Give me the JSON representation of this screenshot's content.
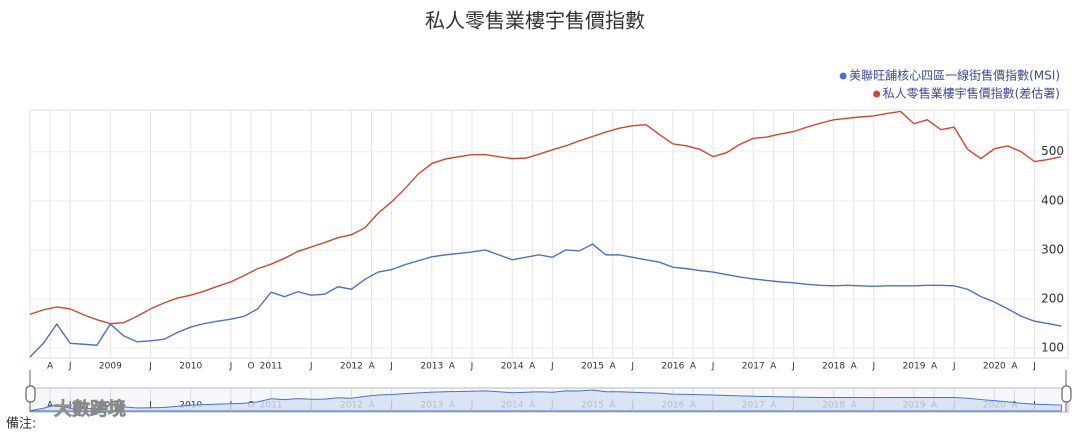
{
  "chart_data": {
    "type": "line",
    "title": "私人零售業樓宇售價指數",
    "x": [
      "2008-01",
      "2008-03",
      "2008-05",
      "2008-07",
      "2008-09",
      "2008-11",
      "2009-01",
      "2009-03",
      "2009-05",
      "2009-07",
      "2009-09",
      "2009-11",
      "2010-01",
      "2010-03",
      "2010-05",
      "2010-07",
      "2010-09",
      "2010-11",
      "2011-01",
      "2011-03",
      "2011-05",
      "2011-07",
      "2011-09",
      "2011-11",
      "2012-01",
      "2012-03",
      "2012-05",
      "2012-07",
      "2012-09",
      "2012-11",
      "2013-01",
      "2013-03",
      "2013-05",
      "2013-07",
      "2013-09",
      "2013-11",
      "2014-01",
      "2014-03",
      "2014-05",
      "2014-07",
      "2014-09",
      "2014-11",
      "2015-01",
      "2015-03",
      "2015-05",
      "2015-07",
      "2015-09",
      "2015-11",
      "2016-01",
      "2016-03",
      "2016-05",
      "2016-07",
      "2016-09",
      "2016-11",
      "2017-01",
      "2017-03",
      "2017-05",
      "2017-07",
      "2017-09",
      "2017-11",
      "2018-01",
      "2018-03",
      "2018-05",
      "2018-07",
      "2018-09",
      "2018-11",
      "2019-01",
      "2019-03",
      "2019-05",
      "2019-07",
      "2019-09",
      "2019-11",
      "2020-01",
      "2020-03",
      "2020-05",
      "2020-07",
      "2020-09",
      "2020-11"
    ],
    "series": [
      {
        "name": "美聯旺舖核心四區一線街售價指數(MSI)",
        "color": "#4a72c4",
        "values": [
          82,
          110,
          149,
          110,
          108,
          106,
          149,
          125,
          113,
          115,
          118,
          132,
          143,
          150,
          155,
          159,
          165,
          180,
          214,
          205,
          215,
          208,
          210,
          225,
          220,
          240,
          255,
          260,
          270,
          278,
          286,
          290,
          293,
          296,
          300,
          290,
          280,
          285,
          290,
          285,
          300,
          298,
          312,
          290,
          290,
          285,
          280,
          275,
          265,
          262,
          258,
          255,
          250,
          245,
          241,
          238,
          235,
          233,
          230,
          228,
          227,
          228,
          227,
          226,
          227,
          227,
          227,
          228,
          228,
          227,
          220,
          205,
          194,
          180,
          165,
          155,
          150,
          145
        ]
      },
      {
        "name": "私人零售業樓宇售價指數(差估署)",
        "color": "#d2472a",
        "values": [
          169,
          178,
          184,
          180,
          168,
          158,
          150,
          152,
          165,
          180,
          192,
          202,
          208,
          216,
          226,
          235,
          248,
          262,
          271,
          283,
          297,
          306,
          315,
          325,
          331,
          345,
          375,
          398,
          425,
          455,
          476,
          485,
          490,
          494,
          494,
          490,
          486,
          487,
          495,
          504,
          512,
          522,
          531,
          540,
          548,
          553,
          555,
          535,
          516,
          512,
          505,
          490,
          498,
          515,
          527,
          530,
          536,
          541,
          550,
          558,
          565,
          568,
          571,
          573,
          578,
          582,
          557,
          565,
          545,
          550,
          505,
          486,
          506,
          512,
          500,
          480,
          484,
          490
        ]
      }
    ],
    "xlim": [
      "2008-01",
      "2020-12"
    ],
    "xticks": [
      {
        "value": "2008-04",
        "label": "A"
      },
      {
        "value": "2008-07",
        "label": "J"
      },
      {
        "value": "2009-01",
        "label": "2009"
      },
      {
        "value": "2009-07",
        "label": "J"
      },
      {
        "value": "2010-01",
        "label": "2010"
      },
      {
        "value": "2010-07",
        "label": "J"
      },
      {
        "value": "2010-10",
        "label": "O"
      },
      {
        "value": "2011-01",
        "label": "2011"
      },
      {
        "value": "2011-07",
        "label": "J"
      },
      {
        "value": "2012-01",
        "label": "2012"
      },
      {
        "value": "2012-04",
        "label": "A"
      },
      {
        "value": "2012-07",
        "label": "J"
      },
      {
        "value": "2013-01",
        "label": "2013"
      },
      {
        "value": "2013-04",
        "label": "A"
      },
      {
        "value": "2013-07",
        "label": "J"
      },
      {
        "value": "2014-01",
        "label": "2014"
      },
      {
        "value": "2014-04",
        "label": "A"
      },
      {
        "value": "2014-07",
        "label": "J"
      },
      {
        "value": "2015-01",
        "label": "2015"
      },
      {
        "value": "2015-04",
        "label": "A"
      },
      {
        "value": "2015-07",
        "label": "J"
      },
      {
        "value": "2016-01",
        "label": "2016"
      },
      {
        "value": "2016-04",
        "label": "A"
      },
      {
        "value": "2016-07",
        "label": "J"
      },
      {
        "value": "2017-01",
        "label": "2017"
      },
      {
        "value": "2017-04",
        "label": "A"
      },
      {
        "value": "2017-07",
        "label": "J"
      },
      {
        "value": "2018-01",
        "label": "2018"
      },
      {
        "value": "2018-04",
        "label": "A"
      },
      {
        "value": "2018-07",
        "label": "J"
      },
      {
        "value": "2019-01",
        "label": "2019"
      },
      {
        "value": "2019-04",
        "label": "A"
      },
      {
        "value": "2019-07",
        "label": "J"
      },
      {
        "value": "2020-01",
        "label": "2020"
      },
      {
        "value": "2020-04",
        "label": "A"
      },
      {
        "value": "2020-07",
        "label": "J"
      }
    ],
    "ylim": [
      80,
      585
    ],
    "yticks": [
      100,
      200,
      300,
      400,
      500
    ],
    "grid": true,
    "legend": "top-right",
    "watermark": "大數跨境",
    "note": "備注:"
  }
}
